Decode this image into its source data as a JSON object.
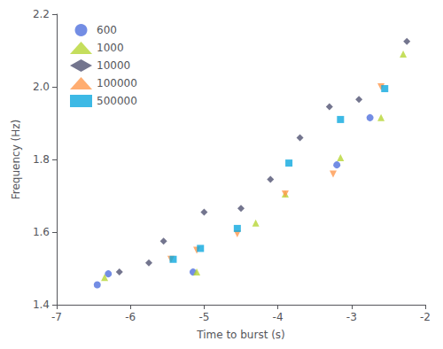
{
  "chart_data": {
    "type": "scatter",
    "xlabel": "Time to burst (s)",
    "ylabel": "Frequency (Hz)",
    "series": [
      {
        "name": "600",
        "marker": "circle",
        "x": [
          -6.45,
          -6.3,
          -5.15,
          -3.2,
          -2.75
        ],
        "y": [
          1.455,
          1.485,
          1.49,
          1.785,
          1.915
        ]
      },
      {
        "name": "1000",
        "marker": "triangle",
        "x": [
          -6.35,
          -5.1,
          -4.3,
          -3.9,
          -3.15,
          -2.6,
          -2.3
        ],
        "y": [
          1.475,
          1.49,
          1.625,
          1.705,
          1.805,
          1.915,
          2.09
        ]
      },
      {
        "name": "10000",
        "marker": "diamond",
        "x": [
          -6.15,
          -5.75,
          -5.55,
          -5.0,
          -4.5,
          -4.1,
          -3.7,
          -3.3,
          -2.9,
          -2.25
        ],
        "y": [
          1.49,
          1.515,
          1.575,
          1.655,
          1.665,
          1.745,
          1.86,
          1.945,
          1.965,
          2.125
        ]
      },
      {
        "name": "100000",
        "marker": "triangle-down",
        "x": [
          -5.45,
          -5.1,
          -4.55,
          -3.9,
          -3.25,
          -2.6
        ],
        "y": [
          1.525,
          1.55,
          1.595,
          1.705,
          1.76,
          2.0
        ]
      },
      {
        "name": "500000",
        "marker": "square",
        "x": [
          -5.42,
          -5.05,
          -4.55,
          -3.85,
          -3.15,
          -2.55
        ],
        "y": [
          1.525,
          1.555,
          1.61,
          1.79,
          1.91,
          1.995
        ]
      }
    ],
    "xlim": [
      -7,
      -2
    ],
    "ylim": [
      1.4,
      2.2
    ],
    "xticks": [
      -7,
      -6,
      -5,
      -4,
      -3,
      -2
    ],
    "yticks": [
      1.4,
      1.6,
      1.8,
      {
        "value": 2.0,
        "label": "2.0"
      },
      2.2
    ],
    "legend": "upper left",
    "grid": false
  }
}
